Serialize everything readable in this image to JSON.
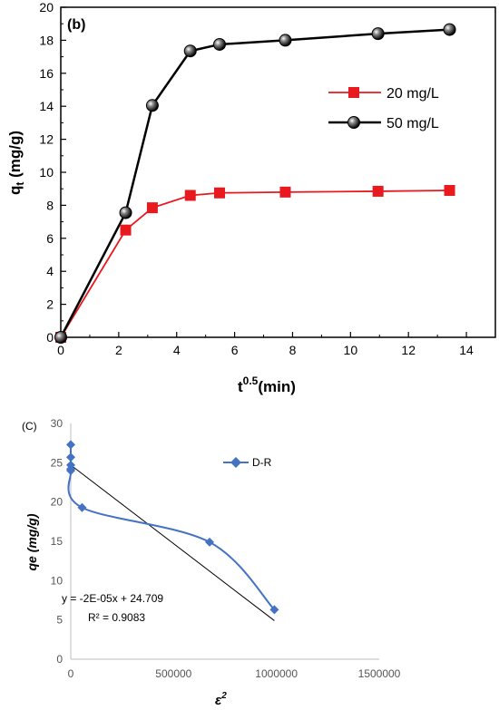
{
  "chart_data": [
    {
      "type": "line",
      "panel_label": "(b)",
      "xlabel": "t",
      "xlabel_sup": "0.5",
      "xlabel_unit": "(min)",
      "ylabel": "q",
      "ylabel_sub": "t",
      "ylabel_unit": " (mg/g)",
      "xlim": [
        0,
        15
      ],
      "ylim": [
        0,
        20
      ],
      "xticks": [
        "0",
        "2",
        "4",
        "6",
        "8",
        "10",
        "12",
        "14"
      ],
      "yticks": [
        "0",
        "2",
        "4",
        "6",
        "8",
        "10",
        "12",
        "14",
        "16",
        "18",
        "20"
      ],
      "legend_position": "right-middle",
      "series": [
        {
          "name": "20 mg/L",
          "color": "#e8191f",
          "marker": "square",
          "x": [
            0,
            2.24,
            3.16,
            4.47,
            5.48,
            7.75,
            10.95,
            13.42
          ],
          "y": [
            0,
            6.5,
            7.85,
            8.6,
            8.75,
            8.8,
            8.85,
            8.9
          ]
        },
        {
          "name": "50 mg/L",
          "color": "#000000",
          "marker": "sphere",
          "x": [
            0,
            2.24,
            3.16,
            4.47,
            5.48,
            7.75,
            10.95,
            13.42
          ],
          "y": [
            0,
            7.55,
            14.05,
            17.35,
            17.75,
            18.0,
            18.4,
            18.65
          ]
        }
      ]
    },
    {
      "type": "scatter",
      "panel_label": "(C)",
      "xlabel": "ε",
      "xlabel_sup": "2",
      "ylabel": "qe (mg/g)",
      "xlim": [
        0,
        1500000
      ],
      "ylim": [
        0,
        30
      ],
      "xticks": [
        "0",
        "500000",
        "1000000",
        "1500000"
      ],
      "yticks": [
        "0",
        "5",
        "10",
        "15",
        "20",
        "25",
        "30"
      ],
      "legend_position": "top-right",
      "series": [
        {
          "name": "D-R",
          "color": "#4472c4",
          "marker": "diamond",
          "x": [
            0,
            0,
            0,
            0,
            0,
            55000,
            675000,
            990000
          ],
          "y": [
            27.3,
            25.7,
            24.7,
            24.2,
            24.0,
            19.3,
            14.9,
            6.3
          ]
        }
      ],
      "trendline": {
        "slope": -2e-05,
        "intercept": 24.709,
        "x_range": [
          0,
          990000
        ],
        "color": "#000000"
      },
      "equation_text": "y = -2E-05x + 24.709",
      "r2_text": "R² = 0.9083"
    }
  ]
}
